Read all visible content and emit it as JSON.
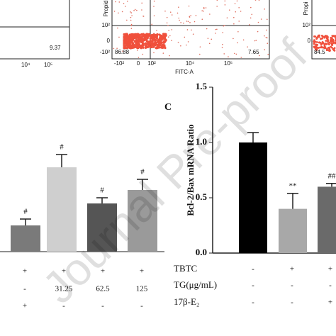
{
  "flow_left": {
    "lr": "9.37",
    "xticks": [
      "10⁴",
      "10⁵"
    ]
  },
  "flow_mid": {
    "ylabel": "Propid",
    "yticks": [
      "10²",
      "0",
      "-10²"
    ],
    "ll": "86.88",
    "lr": "7.65",
    "xticks": [
      "-10²",
      "0",
      "10²",
      "10⁴",
      "10⁵"
    ],
    "xlabel": "FITC-A"
  },
  "flow_right": {
    "ylabel": "Propi",
    "yticks": [
      "10²",
      "0"
    ],
    "ll": "84.5"
  },
  "panel_b": {
    "values": [
      37,
      119,
      68,
      87
    ],
    "errors": [
      9,
      18,
      8,
      15
    ],
    "colors": [
      "#7a7a7a",
      "#cfcfcf",
      "#555555",
      "#9a9a9a"
    ],
    "annotations": [
      "#",
      "#",
      "#",
      "#"
    ],
    "conditions": [
      [
        "+",
        "+",
        "+",
        "+"
      ],
      [
        "-",
        "31.25",
        "62.5",
        "125"
      ],
      [
        "+",
        "-",
        "-",
        "-"
      ]
    ]
  },
  "chart_data": {
    "type": "bar",
    "panel": "C",
    "ylabel": "Bcl-2/Bax mRNA Ratio",
    "ylim": [
      0,
      1.5
    ],
    "yticks": [
      {
        "value": 0,
        "label": "0.0"
      },
      {
        "value": 0.5,
        "label": "0.5"
      },
      {
        "value": 1,
        "label": "1.0"
      },
      {
        "value": 1.5,
        "label": "1.5"
      }
    ],
    "values": [
      1.0,
      0.4,
      0.6
    ],
    "errors": [
      0.09,
      0.14,
      0.03
    ],
    "colors": [
      "#000000",
      "#a8a8a8",
      "#6a6a6a"
    ],
    "annotations": [
      null,
      "**",
      "##"
    ],
    "condition_names": [
      "TBTC",
      "TG(μg/mL)",
      "17β-E₂"
    ],
    "conditions": [
      [
        "-",
        "+",
        "+"
      ],
      [
        "-",
        "-",
        "-"
      ],
      [
        "-",
        "-",
        "+"
      ]
    ]
  },
  "watermark": "Journal Pre-proof"
}
